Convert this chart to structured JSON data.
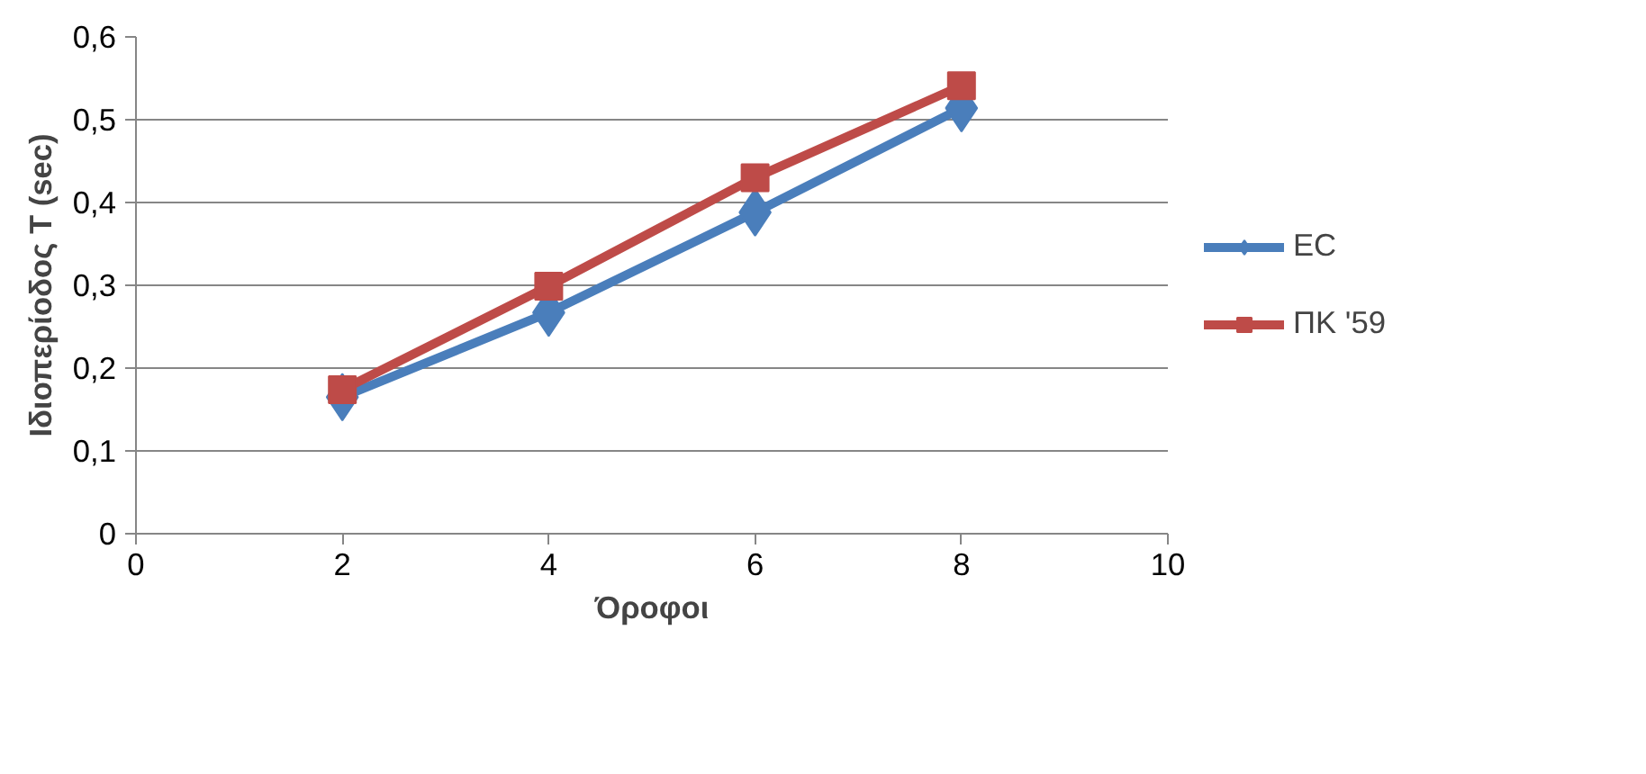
{
  "chart_data": {
    "type": "line",
    "xlabel": "Όροφοι",
    "ylabel": "Ιδιοπερίοδος T (sec)",
    "x": [
      2,
      4,
      6,
      8
    ],
    "series": [
      {
        "name": "EC",
        "color": "#4a7ebb",
        "marker": "diamond",
        "values": [
          0.165,
          0.267,
          0.388,
          0.514
        ]
      },
      {
        "name": "ΠΚ '59",
        "color": "#be4b48",
        "marker": "square",
        "values": [
          0.174,
          0.299,
          0.43,
          0.541
        ]
      }
    ],
    "xlim": [
      0,
      10
    ],
    "xticks": [
      0,
      2,
      4,
      6,
      8,
      10
    ],
    "ylim": [
      0,
      0.6
    ],
    "yticks": [
      {
        "value": 0,
        "label": "0"
      },
      {
        "value": 0.1,
        "label": "0,1"
      },
      {
        "value": 0.2,
        "label": "0,2"
      },
      {
        "value": 0.3,
        "label": "0,3"
      },
      {
        "value": 0.4,
        "label": "0,4"
      },
      {
        "value": 0.5,
        "label": "0,5"
      },
      {
        "value": 0.6,
        "label": "0,6"
      }
    ],
    "grid": "y",
    "legend": "right",
    "line_style": "solid"
  }
}
